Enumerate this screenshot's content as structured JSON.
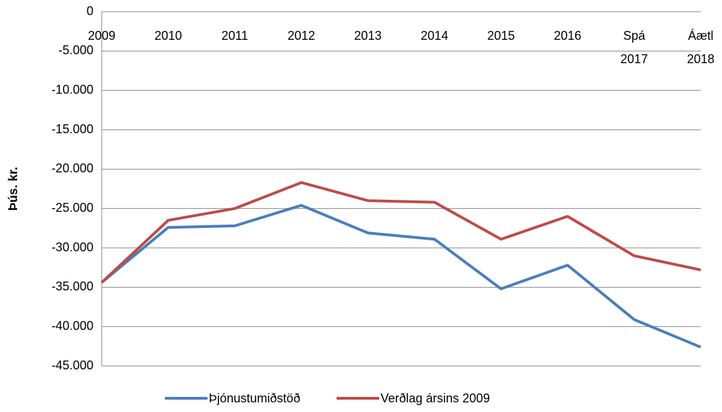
{
  "chart_data": {
    "type": "line",
    "y_label": "Þús. kr.",
    "categories": [
      "2009",
      "2010",
      "2011",
      "2012",
      "2013",
      "2014",
      "2015",
      "2016",
      "Spá 2017",
      "Áætl 2018"
    ],
    "series": [
      {
        "name": "Þjónustumiðstöð",
        "color": "#4a7ebb",
        "values": [
          -34400,
          -27400,
          -27200,
          -24600,
          -28100,
          -28900,
          -35200,
          -32200,
          -39100,
          -42600
        ]
      },
      {
        "name": "Verðlag ársins 2009",
        "color": "#be4b48",
        "values": [
          -34400,
          -26500,
          -25000,
          -21700,
          -24000,
          -24200,
          -28900,
          -26000,
          -31000,
          -32800
        ]
      }
    ],
    "ylim": [
      -45000,
      0
    ],
    "yticks": [
      0,
      {
        "value": -5000,
        "label": "-5.000"
      },
      {
        "value": -10000,
        "label": "-10.000"
      },
      {
        "value": -15000,
        "label": "-15.000"
      },
      {
        "value": -20000,
        "label": "-20.000"
      },
      {
        "value": -25000,
        "label": "-25.000"
      },
      {
        "value": -30000,
        "label": "-30.000"
      },
      {
        "value": -35000,
        "label": "-35.000"
      },
      {
        "value": -40000,
        "label": "-40.000"
      },
      {
        "value": -45000,
        "label": "-45.000"
      }
    ],
    "grid": true,
    "legend": "bottom"
  }
}
